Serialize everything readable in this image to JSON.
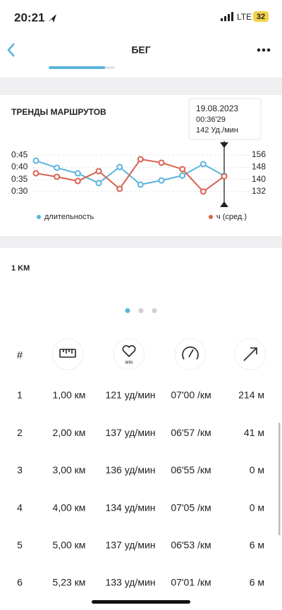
{
  "status_bar": {
    "time": "20:21",
    "network": "LTE",
    "battery": "32"
  },
  "header": {
    "title": "БЕГ"
  },
  "chart_data": {
    "type": "line",
    "title": "ТРЕНДЫ МАРШРУТОВ",
    "categories": [
      null,
      null,
      null,
      null,
      null,
      null,
      null,
      null,
      null,
      null
    ],
    "series": [
      {
        "name": "длительность",
        "color": "#5ab4dc",
        "values": [
          42.7,
          39.8,
          37.5,
          33.5,
          40.1,
          32.9,
          34.6,
          36.6,
          41.3,
          36.5
        ]
      },
      {
        "name": "ч (сред.)",
        "color": "#d9614e",
        "axis": "y2",
        "values": [
          144,
          141.7,
          138.9,
          145.4,
          133.8,
          153.2,
          150.9,
          146.7,
          132,
          142
        ]
      }
    ],
    "ylim": [
      24.8,
      49.4
    ],
    "yticks": [
      {
        "value": 45,
        "label": "0:45"
      },
      {
        "value": 40,
        "label": "0:40"
      },
      {
        "value": 35,
        "label": "0:35"
      },
      {
        "value": 30,
        "label": "0:30"
      }
    ],
    "y2lim": [
      123.7,
      162.9
    ],
    "y2ticks": [
      156,
      148,
      140,
      132
    ],
    "grid": true,
    "legend": "bottom",
    "tooltip": {
      "date": "19.08.2023",
      "duration": "00:36'29",
      "heart_rate": "142 Уд./мин"
    }
  },
  "section": {
    "title": "1 KM"
  },
  "table": {
    "header": "#",
    "heart_label": "MIN",
    "rows": [
      [
        "1",
        "1,00 км",
        "121 уд/мин",
        "07'00 /км",
        "214 м"
      ],
      [
        "2",
        "2,00 км",
        "137 уд/мин",
        "06'57 /км",
        "41 м"
      ],
      [
        "3",
        "3,00 км",
        "136 уд/мин",
        "06'55 /км",
        "0 м"
      ],
      [
        "4",
        "4,00 км",
        "134 уд/мин",
        "07'05 /км",
        "0 м"
      ],
      [
        "5",
        "5,00 км",
        "137 уд/мин",
        "06'53 /км",
        "6 м"
      ],
      [
        "6",
        "5,23 км",
        "133 уд/мин",
        "07'01 /км",
        "6 м"
      ]
    ]
  }
}
